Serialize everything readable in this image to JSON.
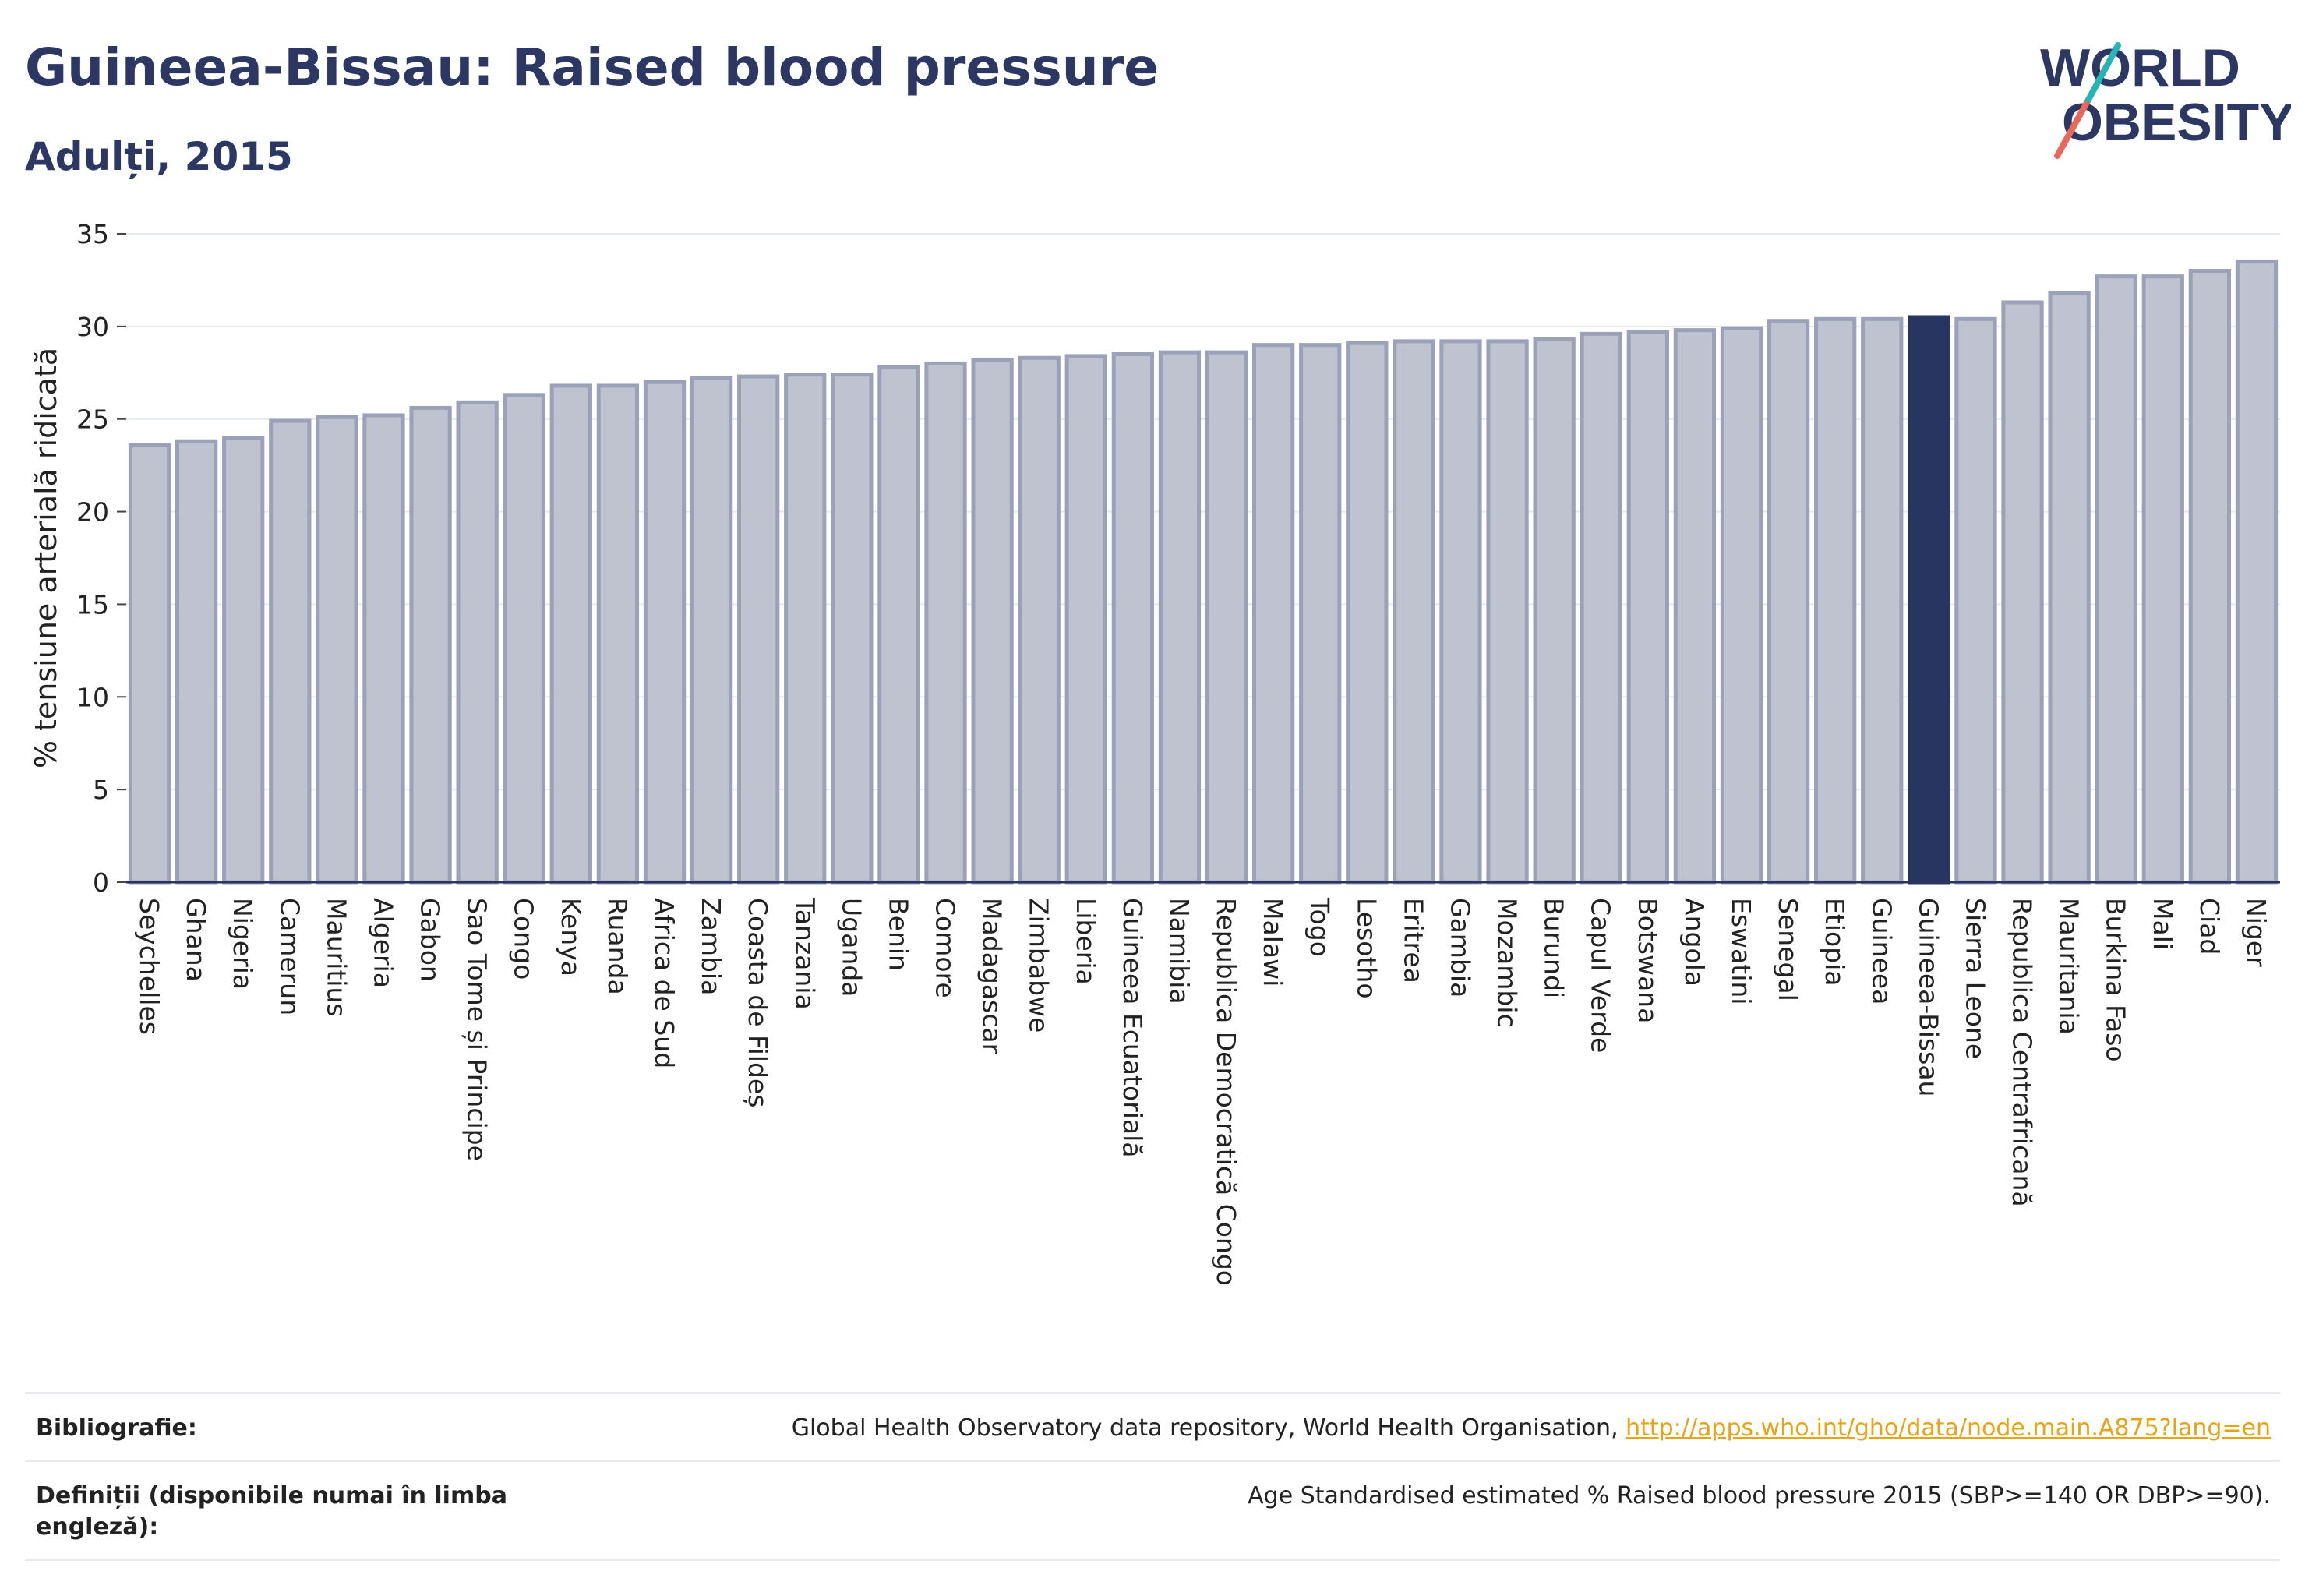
{
  "header": {
    "title": "Guineea-Bissau: Raised blood pressure",
    "subtitle": "Adulți, 2015"
  },
  "logo": {
    "line1": "WORLD",
    "line2": "OBESITY"
  },
  "colors": {
    "bar": "#bfc3d0",
    "bar_stroke": "#9aa1b8",
    "highlight": "#283561",
    "grid": "#e6e8ef"
  },
  "chart_data": {
    "type": "bar",
    "ylabel": "% tensiune arterială ridicată",
    "xlabel": "",
    "ylim": [
      0,
      35
    ],
    "yticks": [
      0,
      5,
      10,
      15,
      20,
      25,
      30,
      35
    ],
    "grid": true,
    "highlight": "Guineea-Bissau",
    "categories": [
      "Seychelles",
      "Ghana",
      "Nigeria",
      "Camerun",
      "Mauritius",
      "Algeria",
      "Gabon",
      "Sao Tome și Principe",
      "Congo",
      "Kenya",
      "Ruanda",
      "Africa de Sud",
      "Zambia",
      "Coasta de Fildeș",
      "Tanzania",
      "Uganda",
      "Benin",
      "Comore",
      "Madagascar",
      "Zimbabwe",
      "Liberia",
      "Guineea Ecuatorială",
      "Namibia",
      "Republica Democratică Congo",
      "Malawi",
      "Togo",
      "Lesotho",
      "Eritrea",
      "Gambia",
      "Mozambic",
      "Burundi",
      "Capul Verde",
      "Botswana",
      "Angola",
      "Eswatini",
      "Senegal",
      "Etiopia",
      "Guineea",
      "Guineea-Bissau",
      "Sierra Leone",
      "Republica Centrafricană",
      "Mauritania",
      "Burkina Faso",
      "Mali",
      "Ciad",
      "Niger"
    ],
    "values": [
      23.6,
      23.8,
      24.0,
      24.9,
      25.1,
      25.2,
      25.6,
      25.9,
      26.3,
      26.8,
      26.8,
      27.0,
      27.2,
      27.3,
      27.4,
      27.4,
      27.8,
      28.0,
      28.2,
      28.3,
      28.4,
      28.5,
      28.6,
      28.6,
      29.0,
      29.0,
      29.1,
      29.2,
      29.2,
      29.2,
      29.3,
      29.6,
      29.7,
      29.8,
      29.9,
      30.3,
      30.4,
      30.4,
      30.5,
      30.4,
      31.3,
      31.8,
      32.7,
      32.7,
      33.0,
      33.5
    ]
  },
  "footer": {
    "bib_label": "Bibliografie:",
    "bib_text": "Global Health Observatory data repository, World Health Organisation, ",
    "bib_link": "http://apps.who.int/gho/data/node.main.A875?lang=en",
    "def_label": "Definiții (disponibile numai în limba engleză):",
    "def_text": "Age Standardised estimated % Raised blood pressure 2015 (SBP>=140 OR DBP>=90)."
  }
}
